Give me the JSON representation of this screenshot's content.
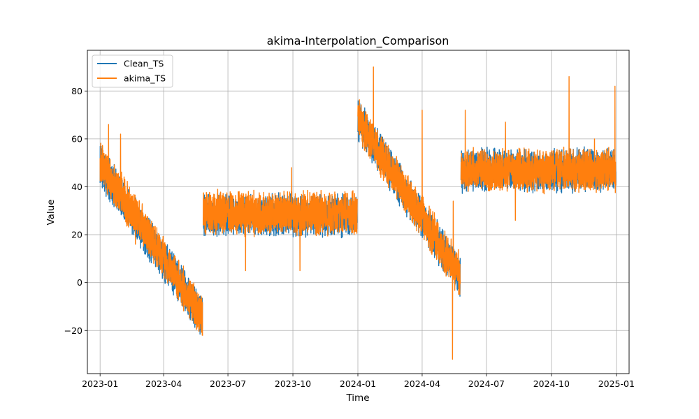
{
  "chart_data": {
    "type": "line",
    "title": "akima-Interpolation_Comparison",
    "xlabel": "Time",
    "ylabel": "Value",
    "xlim": [
      "2022-12-14",
      "2025-01-19"
    ],
    "ylim": [
      -38,
      97
    ],
    "x_ticks": [
      "2023-01-01",
      "2023-04-01",
      "2023-07-01",
      "2023-10-01",
      "2024-01-01",
      "2024-04-01",
      "2024-07-01",
      "2024-10-01",
      "2025-01-01"
    ],
    "x_tick_labels": [
      "2023-01",
      "2023-04",
      "2023-07",
      "2023-10",
      "2024-01",
      "2024-04",
      "2024-07",
      "2024-10",
      "2025-01"
    ],
    "y_ticks": [
      -20,
      0,
      20,
      40,
      60,
      80
    ],
    "y_tick_labels": [
      "−20",
      "0",
      "20",
      "40",
      "60",
      "80"
    ],
    "grid": true,
    "legend_position": "upper-left",
    "series": [
      {
        "name": "Clean_TS",
        "color": "#1f77b4",
        "frequency": "hourly",
        "noise_band": 10,
        "segments": [
          {
            "start": "2023-01-01",
            "end": "2023-05-26",
            "start_value": 49,
            "end_value": -15
          },
          {
            "start": "2023-05-27",
            "end": "2023-12-31",
            "start_value": 28,
            "end_value": 28
          },
          {
            "start": "2024-01-01",
            "end": "2024-05-25",
            "start_value": 68,
            "end_value": 2
          },
          {
            "start": "2024-05-26",
            "end": "2024-12-31",
            "start_value": 47,
            "end_value": 47
          }
        ]
      },
      {
        "name": "akima_TS",
        "color": "#ff7f0e",
        "frequency": "hourly",
        "noise_band": 10,
        "segments": [
          {
            "start": "2023-01-01",
            "end": "2023-05-26",
            "start_value": 50,
            "end_value": -14
          },
          {
            "start": "2023-05-27",
            "end": "2023-12-31",
            "start_value": 29,
            "end_value": 29
          },
          {
            "start": "2024-01-01",
            "end": "2024-05-25",
            "start_value": 68,
            "end_value": 3
          },
          {
            "start": "2024-05-26",
            "end": "2024-12-31",
            "start_value": 47,
            "end_value": 47
          }
        ],
        "spikes": [
          {
            "x": "2023-01-13",
            "y": 66
          },
          {
            "x": "2023-01-30",
            "y": 62
          },
          {
            "x": "2023-02-20",
            "y": 16
          },
          {
            "x": "2023-03-18",
            "y": 8
          },
          {
            "x": "2023-05-08",
            "y": -12
          },
          {
            "x": "2023-07-26",
            "y": 5
          },
          {
            "x": "2023-09-29",
            "y": 48
          },
          {
            "x": "2023-10-11",
            "y": 5
          },
          {
            "x": "2024-01-23",
            "y": 90
          },
          {
            "x": "2024-03-15",
            "y": 27
          },
          {
            "x": "2024-04-01",
            "y": 72
          },
          {
            "x": "2024-05-14",
            "y": -32
          },
          {
            "x": "2024-05-15",
            "y": 34
          },
          {
            "x": "2024-06-01",
            "y": 72
          },
          {
            "x": "2024-07-28",
            "y": 67
          },
          {
            "x": "2024-08-11",
            "y": 26
          },
          {
            "x": "2024-10-26",
            "y": 86
          },
          {
            "x": "2024-12-01",
            "y": 60
          },
          {
            "x": "2024-12-30",
            "y": 82
          }
        ]
      }
    ]
  }
}
